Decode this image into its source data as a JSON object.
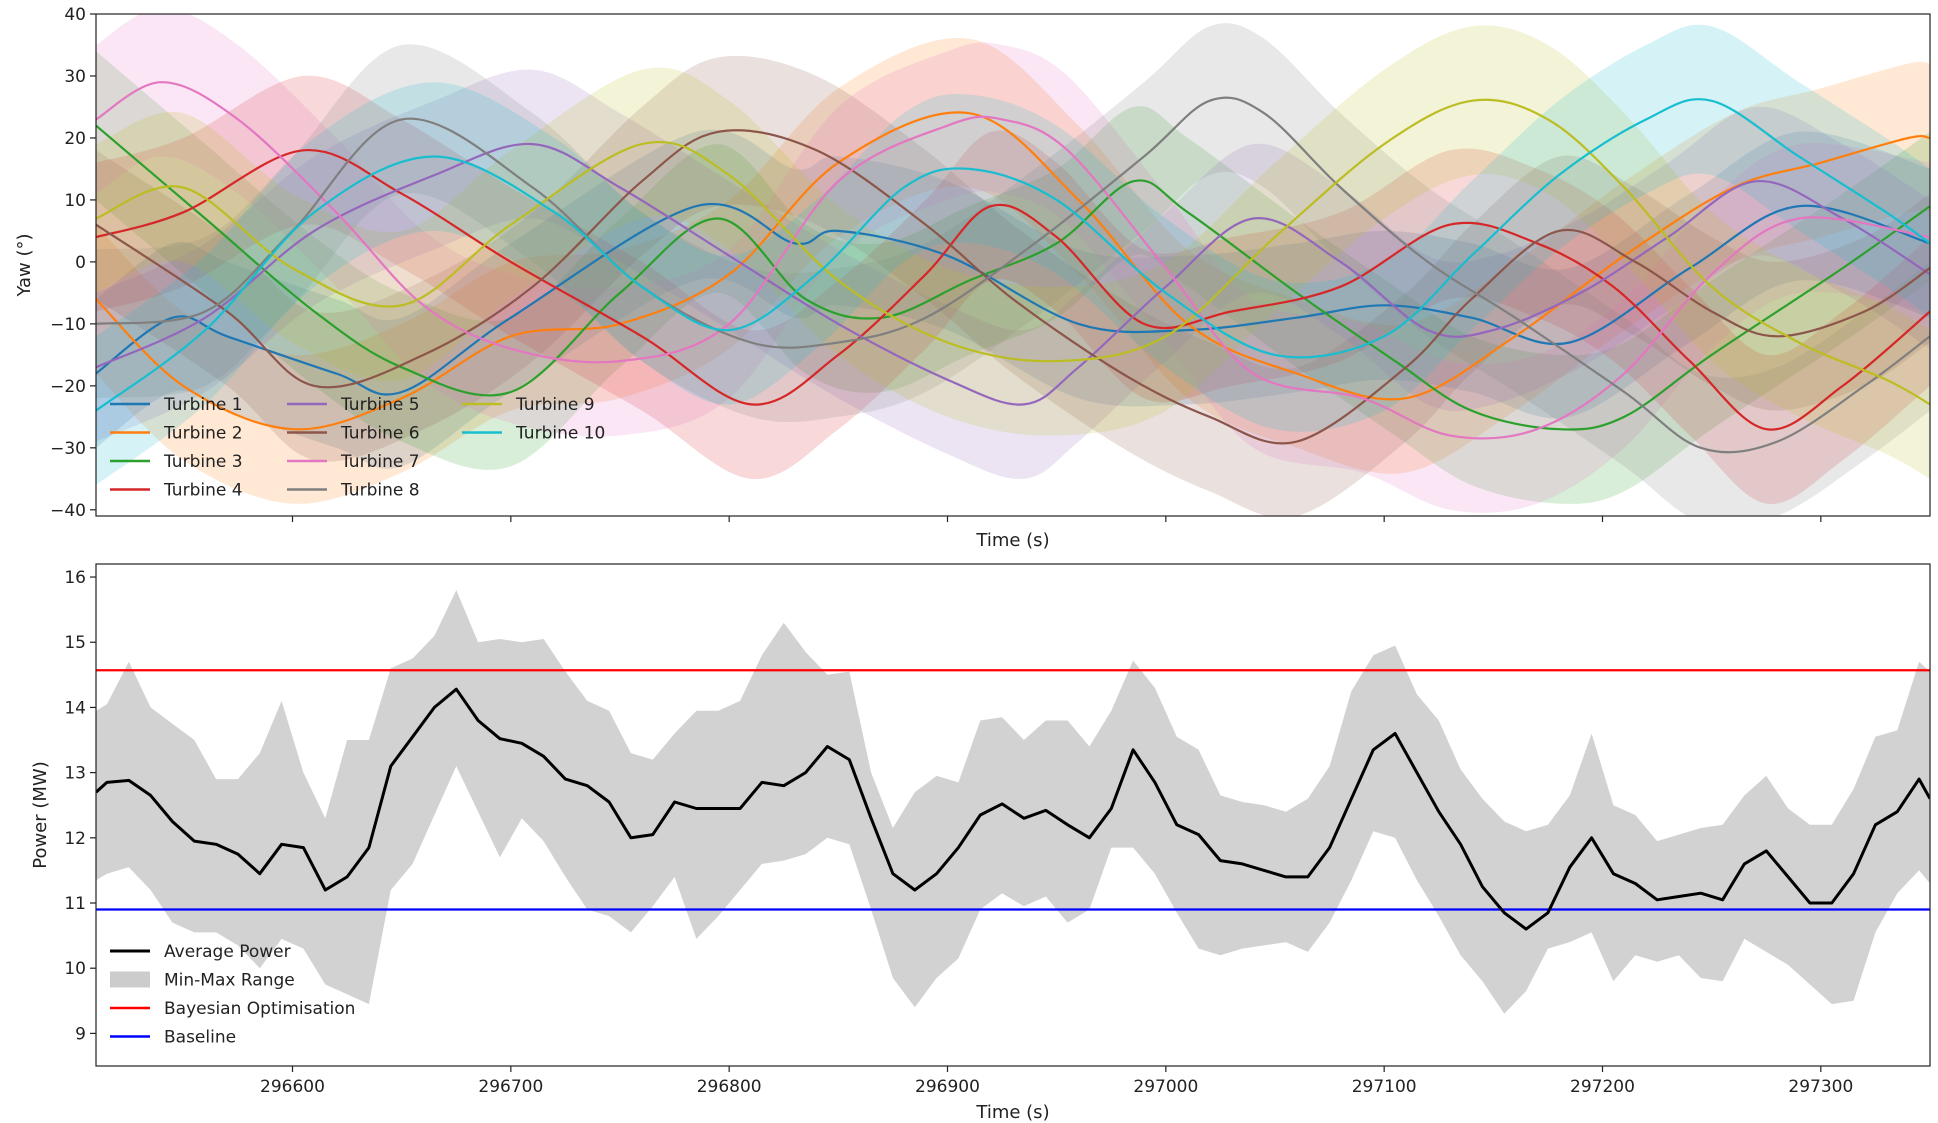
{
  "chart_data": [
    {
      "type": "line",
      "title": "",
      "xlabel": "Time (s)",
      "ylabel": "Yaw (°)",
      "xlim": [
        296510,
        297350
      ],
      "ylim": [
        -41,
        40
      ],
      "y_ticks": [
        40,
        30,
        20,
        10,
        0,
        -10,
        -20,
        -30,
        -40
      ],
      "y_tick_labels": [
        "40",
        "30",
        "20",
        "10",
        "0",
        "−10",
        "−20",
        "−30",
        "−40"
      ],
      "x_ticks": [
        296600,
        296700,
        296800,
        296900,
        297000,
        297100,
        297200,
        297300
      ],
      "x_tick_labels_shown": false,
      "grid": false,
      "legend_position": "lower-left",
      "legend_columns": 3,
      "band_half_width": 12,
      "band_opacity": 0.18,
      "series": [
        {
          "name": "Turbine 1",
          "color": "#1f77b4",
          "x": [
            296510,
            296545,
            296570,
            296620,
            296650,
            296700,
            296785,
            296830,
            296850,
            296900,
            296960,
            297010,
            297060,
            297100,
            297140,
            297185,
            297240,
            297290,
            297350
          ],
          "y": [
            -18,
            -9,
            -12,
            -18,
            -21,
            -9,
            9,
            3,
            5,
            1,
            -10,
            -11,
            -9,
            -7,
            -9,
            -13,
            -1,
            9,
            3
          ]
        },
        {
          "name": "Turbine 2",
          "color": "#ff7f0e",
          "x": [
            296510,
            296550,
            296600,
            296650,
            296700,
            296750,
            296800,
            296850,
            296910,
            296960,
            297010,
            297060,
            297110,
            297160,
            297210,
            297260,
            297300,
            297340,
            297350
          ],
          "y": [
            -6,
            -20,
            -27,
            -22,
            -12,
            -10,
            -2,
            16,
            24,
            10,
            -10,
            -18,
            -22,
            -12,
            1,
            12,
            16,
            20,
            20
          ]
        },
        {
          "name": "Turbine 3",
          "color": "#2ca02c",
          "x": [
            296510,
            296560,
            296610,
            296650,
            296700,
            296750,
            296795,
            296835,
            296870,
            296910,
            296950,
            296985,
            297010,
            297060,
            297105,
            297140,
            297180,
            297210,
            297250,
            297310,
            297350
          ],
          "y": [
            22,
            7,
            -8,
            -17,
            -21,
            -5,
            7,
            -6,
            -9,
            -3,
            3,
            13,
            8,
            -5,
            -16,
            -24,
            -27,
            -25,
            -15,
            -1,
            9
          ]
        },
        {
          "name": "Turbine 4",
          "color": "#d62728",
          "x": [
            296510,
            296550,
            296605,
            296650,
            296700,
            296760,
            296810,
            296850,
            296890,
            296920,
            296950,
            296990,
            297030,
            297080,
            297130,
            297170,
            297205,
            297240,
            297275,
            297310,
            297350
          ],
          "y": [
            4,
            8,
            18,
            11,
            0,
            -12,
            -23,
            -15,
            -2,
            9,
            4,
            -10,
            -8,
            -4,
            6,
            3,
            -4,
            -16,
            -27,
            -20,
            -8
          ]
        },
        {
          "name": "Turbine 5",
          "color": "#9467bd",
          "x": [
            296510,
            296560,
            296610,
            296665,
            296710,
            296750,
            296800,
            296850,
            296900,
            296935,
            296960,
            297000,
            297040,
            297080,
            297120,
            297150,
            297190,
            297230,
            297270,
            297310,
            297350
          ],
          "y": [
            -17,
            -9,
            5,
            14,
            19,
            12,
            1,
            -10,
            -19,
            -23,
            -17,
            -4,
            7,
            0,
            -11,
            -11,
            -5,
            4,
            13,
            7,
            -2
          ]
        },
        {
          "name": "Turbine 6",
          "color": "#8c564b",
          "x": [
            296510,
            296570,
            296610,
            296660,
            296710,
            296760,
            296795,
            296840,
            296890,
            296930,
            296980,
            297020,
            297060,
            297110,
            297140,
            297180,
            297215,
            297250,
            297280,
            297320,
            297350
          ],
          "y": [
            6,
            -8,
            -20,
            -15,
            -4,
            13,
            21,
            18,
            6,
            -6,
            -18,
            -25,
            -29,
            -17,
            -6,
            5,
            0,
            -8,
            -12,
            -8,
            -1
          ]
        },
        {
          "name": "Turbine 7",
          "color": "#e377c2",
          "x": [
            296510,
            296540,
            296575,
            296620,
            296660,
            296700,
            296750,
            296800,
            296850,
            296900,
            296925,
            296955,
            297000,
            297040,
            297090,
            297130,
            297170,
            297210,
            297250,
            297290,
            297350
          ],
          "y": [
            23,
            29,
            23,
            8,
            -7,
            -14,
            -16,
            -10,
            13,
            22,
            23,
            18,
            -1,
            -18,
            -22,
            -28,
            -27,
            -18,
            -2,
            7,
            4
          ]
        },
        {
          "name": "Turbine 8",
          "color": "#7f7f7f",
          "x": [
            296510,
            296560,
            296600,
            296650,
            296710,
            296760,
            296810,
            296850,
            296890,
            296940,
            296990,
            297020,
            297045,
            297080,
            297120,
            297160,
            297210,
            297245,
            297280,
            297320,
            297350
          ],
          "y": [
            -10,
            -8,
            5,
            23,
            12,
            -4,
            -13,
            -13,
            -9,
            3,
            17,
            26,
            24,
            12,
            0,
            -9,
            -21,
            -30,
            -29,
            -20,
            -12
          ]
        },
        {
          "name": "Turbine 9",
          "color": "#bcbd22",
          "x": [
            296510,
            296550,
            296600,
            296650,
            296700,
            296760,
            296800,
            296850,
            296900,
            296950,
            297000,
            297050,
            297100,
            297140,
            297175,
            297210,
            297250,
            297290,
            297330,
            297350
          ],
          "y": [
            7,
            12,
            -1,
            -7,
            6,
            19,
            14,
            -3,
            -13,
            -16,
            -12,
            4,
            19,
            26,
            23,
            12,
            -4,
            -13,
            -19,
            -23
          ]
        },
        {
          "name": "Turbine 10",
          "color": "#17becf",
          "x": [
            296510,
            296560,
            296610,
            296665,
            296720,
            296760,
            296800,
            296840,
            296880,
            296910,
            296950,
            297000,
            297050,
            297100,
            297140,
            297180,
            297220,
            297250,
            297290,
            297330,
            297350
          ],
          "y": [
            -24,
            -11,
            8,
            17,
            8,
            -4,
            -11,
            -2,
            12,
            15,
            10,
            -5,
            -15,
            -12,
            1,
            14,
            23,
            26,
            17,
            8,
            3
          ]
        }
      ]
    },
    {
      "type": "line",
      "title": "",
      "xlabel": "Time (s)",
      "ylabel": "Power (MW)",
      "xlim": [
        296510,
        297350
      ],
      "ylim": [
        8.5,
        16.2
      ],
      "y_ticks": [
        9,
        10,
        11,
        12,
        13,
        14,
        15,
        16
      ],
      "y_tick_labels": [
        "9",
        "10",
        "11",
        "12",
        "13",
        "14",
        "15",
        "16"
      ],
      "x_ticks": [
        296600,
        296700,
        296800,
        296900,
        297000,
        297100,
        297200,
        297300
      ],
      "x_tick_labels": [
        "296600",
        "296700",
        "296800",
        "296900",
        "297000",
        "297100",
        "297200",
        "297300"
      ],
      "grid": false,
      "legend_position": "lower-left",
      "x": [
        296510,
        296515,
        296525,
        296535,
        296545,
        296555,
        296565,
        296575,
        296585,
        296595,
        296605,
        296615,
        296625,
        296635,
        296645,
        296655,
        296665,
        296675,
        296685,
        296695,
        296705,
        296715,
        296725,
        296735,
        296745,
        296755,
        296765,
        296775,
        296785,
        296795,
        296805,
        296815,
        296825,
        296835,
        296845,
        296855,
        296865,
        296875,
        296885,
        296895,
        296905,
        296915,
        296925,
        296935,
        296945,
        296955,
        296965,
        296975,
        296985,
        296995,
        297005,
        297015,
        297025,
        297035,
        297045,
        297055,
        297065,
        297075,
        297085,
        297095,
        297105,
        297115,
        297125,
        297135,
        297145,
        297155,
        297165,
        297175,
        297185,
        297195,
        297205,
        297215,
        297225,
        297235,
        297245,
        297255,
        297265,
        297275,
        297285,
        297295,
        297305,
        297315,
        297325,
        297335,
        297345,
        297350
      ],
      "series": [
        {
          "name": "Average Power",
          "color": "#000000",
          "role": "line",
          "values": [
            12.7,
            12.85,
            12.88,
            12.65,
            12.25,
            11.95,
            11.9,
            11.75,
            11.45,
            11.9,
            11.85,
            11.2,
            11.4,
            11.85,
            13.1,
            13.55,
            14.0,
            14.28,
            13.8,
            13.52,
            13.45,
            13.25,
            12.9,
            12.8,
            12.55,
            12.0,
            12.05,
            12.55,
            12.45,
            12.45,
            12.45,
            12.85,
            12.8,
            13.0,
            13.4,
            13.2,
            12.3,
            11.45,
            11.2,
            11.45,
            11.85,
            12.35,
            12.52,
            12.3,
            12.42,
            12.2,
            12.0,
            12.45,
            13.35,
            12.85,
            12.2,
            12.05,
            11.65,
            11.6,
            11.5,
            11.4,
            11.4,
            11.85,
            12.6,
            13.35,
            13.6,
            13.0,
            12.4,
            11.9,
            11.25,
            10.85,
            10.6,
            10.85,
            11.55,
            12.0,
            11.45,
            11.3,
            11.05,
            11.1,
            11.15,
            11.05,
            11.6,
            11.8,
            11.4,
            11.0,
            11.0,
            11.45,
            12.2,
            12.4,
            12.9,
            12.6
          ]
        },
        {
          "name": "Min-Max Range",
          "color": "#bfbfbf",
          "role": "band",
          "lower": [
            11.35,
            11.45,
            11.55,
            11.2,
            10.7,
            10.55,
            10.55,
            10.35,
            10.0,
            10.45,
            10.3,
            9.75,
            9.6,
            9.45,
            11.2,
            11.6,
            12.35,
            13.1,
            12.4,
            11.7,
            12.3,
            11.95,
            11.4,
            10.9,
            10.8,
            10.55,
            10.95,
            11.4,
            10.45,
            10.8,
            11.2,
            11.6,
            11.65,
            11.75,
            12.0,
            11.9,
            10.9,
            9.85,
            9.4,
            9.85,
            10.15,
            10.9,
            11.15,
            10.95,
            11.1,
            10.7,
            10.9,
            11.85,
            11.85,
            11.45,
            10.85,
            10.3,
            10.2,
            10.3,
            10.35,
            10.4,
            10.25,
            10.7,
            11.35,
            12.1,
            12.0,
            11.35,
            10.8,
            10.2,
            9.8,
            9.3,
            9.65,
            10.3,
            10.4,
            10.55,
            9.8,
            10.2,
            10.1,
            10.2,
            9.85,
            9.8,
            10.45,
            10.25,
            10.05,
            9.75,
            9.45,
            9.5,
            10.55,
            11.15,
            11.5,
            11.3
          ],
          "upper": [
            13.95,
            14.05,
            14.7,
            14.0,
            13.75,
            13.5,
            12.9,
            12.9,
            13.3,
            14.1,
            13.0,
            12.3,
            13.5,
            13.5,
            14.6,
            14.75,
            15.1,
            15.8,
            15.0,
            15.05,
            15.0,
            15.05,
            14.55,
            14.1,
            13.95,
            13.3,
            13.2,
            13.6,
            13.95,
            13.95,
            14.1,
            14.8,
            15.3,
            14.85,
            14.5,
            14.55,
            13.0,
            12.15,
            12.7,
            12.95,
            12.85,
            13.8,
            13.85,
            13.5,
            13.8,
            13.8,
            13.4,
            13.95,
            14.72,
            14.3,
            13.55,
            13.35,
            12.65,
            12.55,
            12.5,
            12.4,
            12.6,
            13.1,
            14.25,
            14.8,
            14.95,
            14.2,
            13.8,
            13.05,
            12.6,
            12.25,
            12.1,
            12.2,
            12.65,
            13.6,
            12.5,
            12.35,
            11.95,
            12.05,
            12.15,
            12.2,
            12.65,
            12.95,
            12.45,
            12.2,
            12.2,
            12.75,
            13.55,
            13.65,
            14.7,
            14.55
          ]
        },
        {
          "name": "Bayesian Optimisation",
          "color": "#ff0000",
          "role": "hline",
          "value": 14.57
        },
        {
          "name": "Baseline",
          "color": "#0000ff",
          "role": "hline",
          "value": 10.9
        }
      ]
    }
  ]
}
